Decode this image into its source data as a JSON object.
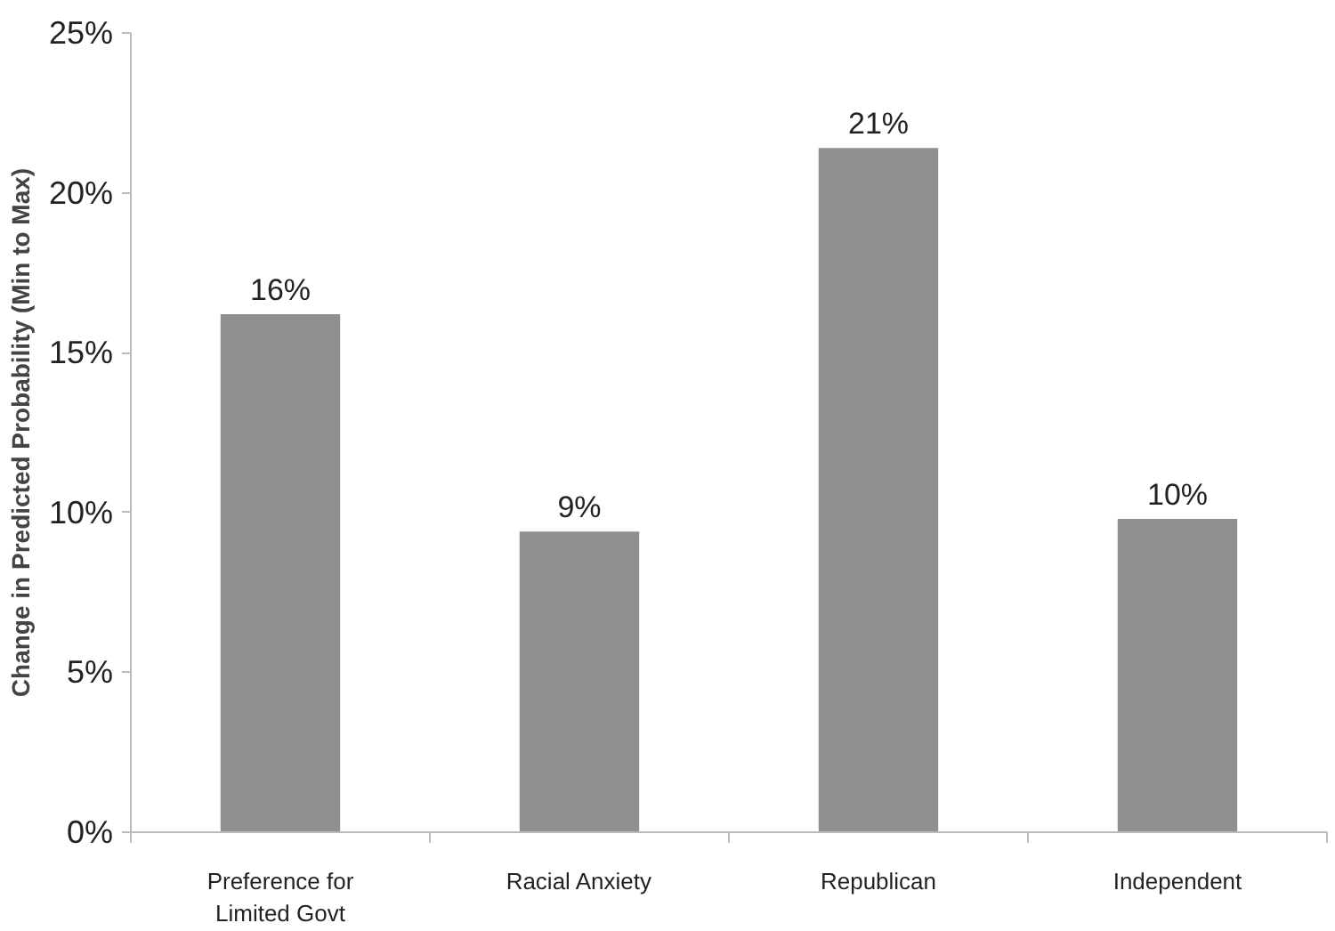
{
  "chart_data": {
    "type": "bar",
    "ylabel": "Change in Predicted Probability (Min to Max)",
    "categories": [
      "Preference for Limited Govt",
      "Racial Anxiety",
      "Republican",
      "Independent"
    ],
    "values": [
      16.2,
      9.4,
      21.4,
      9.8
    ],
    "value_labels": [
      "16%",
      "9%",
      "21%",
      "10%"
    ],
    "color": "#8f8f8f",
    "ylim": [
      0,
      25
    ],
    "yticks": [
      {
        "value": 0,
        "label": "0%"
      },
      {
        "value": 5,
        "label": "5%"
      },
      {
        "value": 10,
        "label": "10%"
      },
      {
        "value": 15,
        "label": "15%"
      },
      {
        "value": 20,
        "label": "20%"
      },
      {
        "value": 25,
        "label": "25%"
      }
    ],
    "grid": false
  }
}
